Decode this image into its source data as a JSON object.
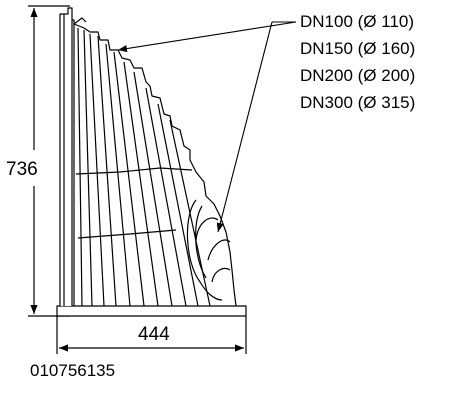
{
  "drawing": {
    "height_dim": "736",
    "width_dim": "444",
    "size_labels": [
      "DN100 (Ø 110)",
      "DN150 (Ø 160)",
      "DN200 (Ø 200)",
      "DN300 (Ø 315)"
    ],
    "part_number": "010756135"
  }
}
